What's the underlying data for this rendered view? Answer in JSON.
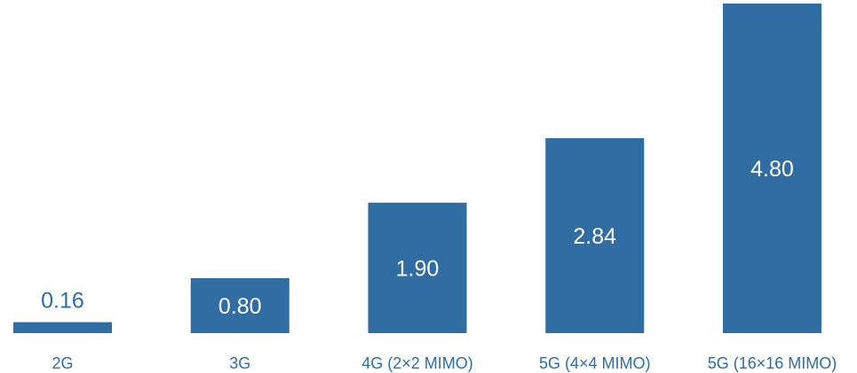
{
  "chart_data": {
    "type": "bar",
    "categories": [
      "2G",
      "3G",
      "4G (2×2 MIMO)",
      "5G (4×4 MIMO)",
      "5G (16×16 MIMO)"
    ],
    "values": [
      0.16,
      0.8,
      1.9,
      2.84,
      4.8
    ],
    "value_labels": [
      "0.16",
      "0.80",
      "1.90",
      "2.84",
      "4.80"
    ],
    "title": "",
    "xlabel": "",
    "ylabel": "",
    "ylim": [
      0,
      4.8
    ],
    "grid": false,
    "legend": "none",
    "bar_color": "#2f6da3",
    "label_color": "#2f6da3"
  }
}
